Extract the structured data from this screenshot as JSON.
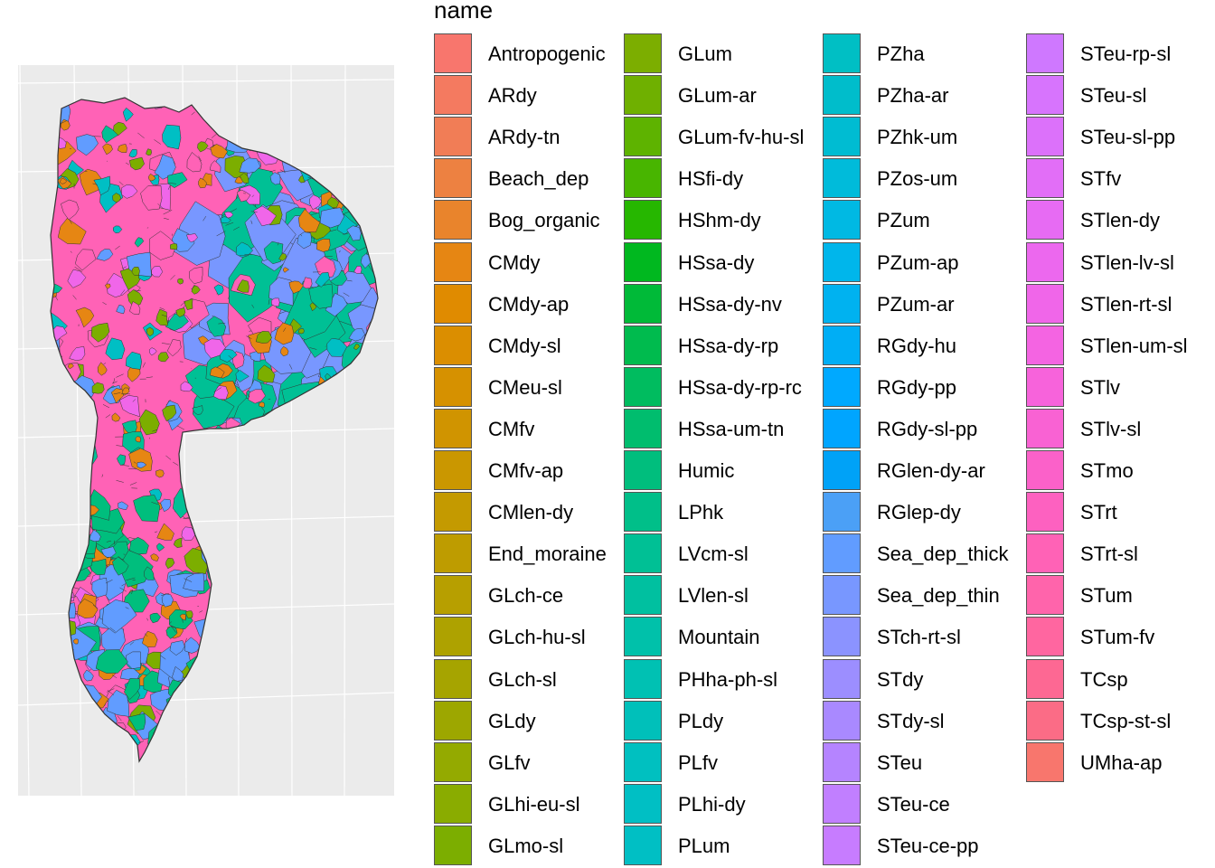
{
  "legend": {
    "title": "name",
    "columns": [
      [
        {
          "label": "Antropogenic",
          "color": "#F8766D"
        },
        {
          "label": "ARdy",
          "color": "#F47A60"
        },
        {
          "label": "ARdy-tn",
          "color": "#F17D56"
        },
        {
          "label": "Beach_dep",
          "color": "#ED8141"
        },
        {
          "label": "Bog_organic",
          "color": "#E9842C"
        },
        {
          "label": "CMdy",
          "color": "#E68613"
        },
        {
          "label": "CMdy-ap",
          "color": "#E08B00"
        },
        {
          "label": "CMdy-sl",
          "color": "#DB8E00"
        },
        {
          "label": "CMeu-sl",
          "color": "#D69100"
        },
        {
          "label": "CMfv",
          "color": "#D09400"
        },
        {
          "label": "CMfv-ap",
          "color": "#CA9700"
        },
        {
          "label": "CMlen-dy",
          "color": "#C49A00"
        },
        {
          "label": "End_moraine",
          "color": "#BE9C00"
        },
        {
          "label": "GLch-ce",
          "color": "#B79F00"
        },
        {
          "label": "GLch-hu-sl",
          "color": "#AEA200"
        },
        {
          "label": "GLch-sl",
          "color": "#A6A400"
        },
        {
          "label": "GLdy",
          "color": "#9DA700"
        },
        {
          "label": "GLfv",
          "color": "#94AA00"
        },
        {
          "label": "GLhi-eu-sl",
          "color": "#8AAC00"
        },
        {
          "label": "GLmo-sl",
          "color": "#7CAE00"
        }
      ],
      [
        {
          "label": "GLum",
          "color": "#7CAE00"
        },
        {
          "label": "GLum-ar",
          "color": "#6FB000"
        },
        {
          "label": "GLum-fv-hu-sl",
          "color": "#5EB300"
        },
        {
          "label": "HSfi-dy",
          "color": "#48B500"
        },
        {
          "label": "HShm-dy",
          "color": "#26B700"
        },
        {
          "label": "HSsa-dy",
          "color": "#00B81F"
        },
        {
          "label": "HSsa-dy-nv",
          "color": "#00BA38"
        },
        {
          "label": "HSsa-dy-rp",
          "color": "#00BB4E"
        },
        {
          "label": "HSsa-dy-rp-rc",
          "color": "#00BC5F"
        },
        {
          "label": "HSsa-um-tn",
          "color": "#00BD6E"
        },
        {
          "label": "Humic",
          "color": "#00BE7D"
        },
        {
          "label": "LPhk",
          "color": "#00BF89"
        },
        {
          "label": "LVcm-sl",
          "color": "#00C095"
        },
        {
          "label": "LVlen-sl",
          "color": "#00C0A0"
        },
        {
          "label": "Mountain",
          "color": "#00C1AA"
        },
        {
          "label": "PHha-ph-sl",
          "color": "#00C1B3"
        },
        {
          "label": "PLdy",
          "color": "#00C0BA"
        },
        {
          "label": "PLfv",
          "color": "#00C0C0"
        },
        {
          "label": "PLhi-dy",
          "color": "#00BFC4"
        },
        {
          "label": "PLum",
          "color": "#00BFC4"
        }
      ],
      [
        {
          "label": "PZha",
          "color": "#00BFC4"
        },
        {
          "label": "PZha-ar",
          "color": "#00BDCB"
        },
        {
          "label": "PZhk-um",
          "color": "#00BCD2"
        },
        {
          "label": "PZos-um",
          "color": "#00BBDA"
        },
        {
          "label": "PZum",
          "color": "#00B9E3"
        },
        {
          "label": "PZum-ap",
          "color": "#00B6EB"
        },
        {
          "label": "PZum-ar",
          "color": "#00B2F0"
        },
        {
          "label": "RGdy-hu",
          "color": "#00AEF5"
        },
        {
          "label": "RGdy-pp",
          "color": "#00A9FF"
        },
        {
          "label": "RGdy-sl-pp",
          "color": "#00A5FF"
        },
        {
          "label": "RGlen-dy-ar",
          "color": "#00A2F7"
        },
        {
          "label": "RGlep-dy",
          "color": "#4BA0F6"
        },
        {
          "label": "Sea_dep_thick",
          "color": "#619CFF"
        },
        {
          "label": "Sea_dep_thin",
          "color": "#7897FF"
        },
        {
          "label": "STch-rt-sl",
          "color": "#8B93FF"
        },
        {
          "label": "STdy",
          "color": "#9C8EFF"
        },
        {
          "label": "STdy-sl",
          "color": "#A989FF"
        },
        {
          "label": "STeu",
          "color": "#B584FF"
        },
        {
          "label": "STeu-ce",
          "color": "#C17FFF"
        },
        {
          "label": "STeu-ce-pp",
          "color": "#C77CFF"
        }
      ],
      [
        {
          "label": "STeu-rp-sl",
          "color": "#CF78FF"
        },
        {
          "label": "STeu-sl",
          "color": "#D774FD"
        },
        {
          "label": "STeu-sl-pp",
          "color": "#DC71FA"
        },
        {
          "label": "STfv",
          "color": "#E26EF7"
        },
        {
          "label": "STlen-dy",
          "color": "#E76BF3"
        },
        {
          "label": "STlen-lv-sl",
          "color": "#EC68EE"
        },
        {
          "label": "STlen-rt-sl",
          "color": "#F066E9"
        },
        {
          "label": "STlen-um-sl",
          "color": "#F464E2"
        },
        {
          "label": "STlv",
          "color": "#F763DB"
        },
        {
          "label": "STlv-sl",
          "color": "#F962D3"
        },
        {
          "label": "STmo",
          "color": "#FB61C9"
        },
        {
          "label": "STrt",
          "color": "#FD61C0"
        },
        {
          "label": "STrt-sl",
          "color": "#FF62B6"
        },
        {
          "label": "STum",
          "color": "#FF64AB"
        },
        {
          "label": "STum-fv",
          "color": "#FF66A0"
        },
        {
          "label": "TCsp",
          "color": "#FD6893"
        },
        {
          "label": "TCsp-st-sl",
          "color": "#FB6C86"
        },
        {
          "label": "UMha-ap",
          "color": "#F8766D"
        }
      ]
    ]
  },
  "map": {
    "panel_background": "#EBEBEB",
    "gridline_color": "#FFFFFF",
    "region_outline_color": "#333333",
    "palette_sample": [
      "#FF62B6",
      "#619CFF",
      "#00C095",
      "#E68613",
      "#7CAE00",
      "#F066E9",
      "#00BFC4"
    ]
  }
}
